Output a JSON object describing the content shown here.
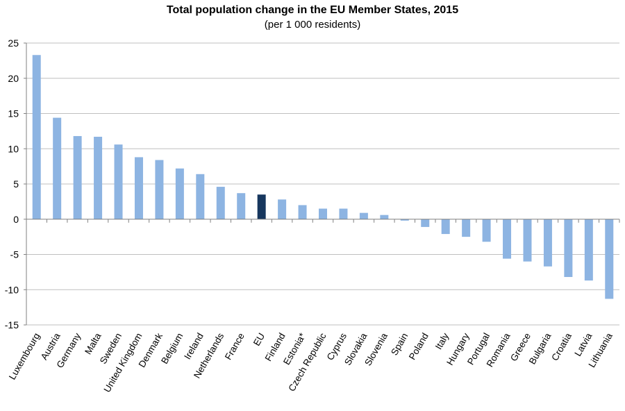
{
  "chart_data": {
    "type": "bar",
    "title": "Total population change in the EU Member States, 2015",
    "subtitle": "(per 1 000 residents)",
    "xlabel": "",
    "ylabel": "",
    "ylim": [
      -15,
      25
    ],
    "yticks": [
      25,
      20,
      15,
      10,
      5,
      0,
      -5,
      -10,
      -15
    ],
    "grid": true,
    "legend": "none",
    "colors": {
      "bar": "#8db4e2",
      "highlight": "#17375e",
      "grid": "#bfbfbf",
      "axis": "#808080"
    },
    "highlight_category": "EU",
    "categories": [
      "Luxembourg",
      "Austria",
      "Germany",
      "Malta",
      "Sweden",
      "United Kingdom",
      "Denmark",
      "Belgium",
      "Ireland",
      "Netherlands",
      "France",
      "EU",
      "Finland",
      "Estonia*",
      "Czech Republic",
      "Cyprus",
      "Slovakia",
      "Slovenia",
      "Spain",
      "Poland",
      "Italy",
      "Hungary",
      "Portugal",
      "Romania",
      "Greece",
      "Bulgaria",
      "Croatia",
      "Latvia",
      "Lithuania"
    ],
    "values": [
      23.3,
      14.4,
      11.8,
      11.7,
      10.6,
      8.8,
      8.4,
      7.2,
      6.4,
      4.6,
      3.7,
      3.5,
      2.8,
      2.0,
      1.5,
      1.5,
      0.9,
      0.6,
      -0.2,
      -1.1,
      -2.1,
      -2.5,
      -3.2,
      -5.6,
      -6.0,
      -6.7,
      -8.2,
      -8.7,
      -11.3
    ]
  }
}
